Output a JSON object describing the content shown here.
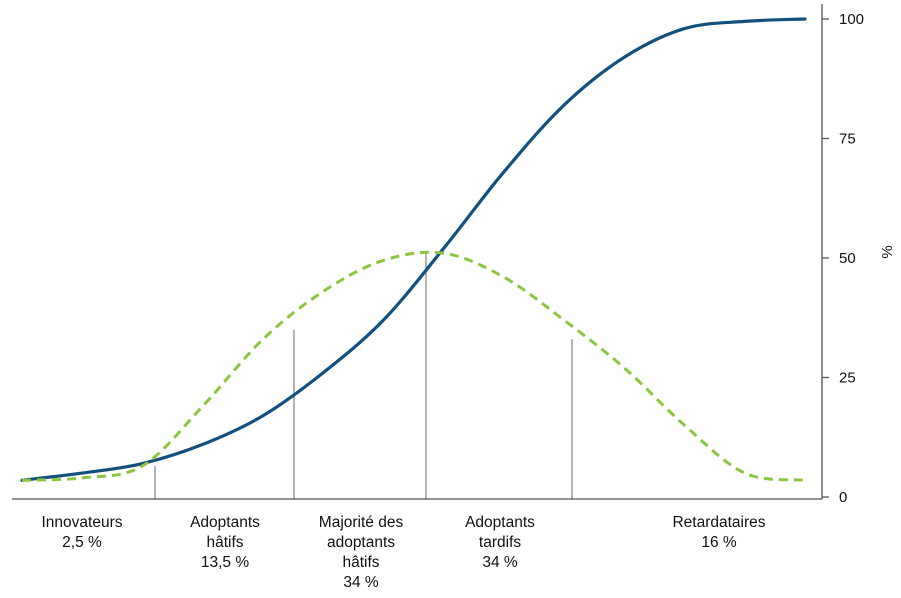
{
  "chart_data": {
    "type": "line",
    "title": "",
    "xlabel": "",
    "ylabel": "%",
    "ylim": [
      0,
      100
    ],
    "yticks": [
      "0",
      "25",
      "50",
      "75",
      "100"
    ],
    "grid": false,
    "legend": "none",
    "categories": [
      {
        "lines": [
          "Innovateurs",
          "2,5 %"
        ]
      },
      {
        "lines": [
          "Adoptants",
          "hâtifs",
          "13,5 %"
        ]
      },
      {
        "lines": [
          "Majorité des",
          "adoptants",
          "hâtifs",
          "34 %"
        ]
      },
      {
        "lines": [
          "Adoptants",
          "tardifs",
          "34 %"
        ]
      },
      {
        "lines": [
          "Retardataires",
          "16 %"
        ]
      }
    ],
    "dividers_y": [
      6.5,
      35,
      51,
      33
    ],
    "series": [
      {
        "style": "solid",
        "color": "#12507e",
        "x": [
          0,
          60,
          120,
          180,
          240,
          300,
          360,
          420,
          480,
          540,
          600,
          660,
          720,
          780
        ],
        "y": [
          3.5,
          5,
          7,
          11,
          17,
          26,
          37,
          52,
          68,
          82,
          92,
          98,
          99.5,
          100
        ]
      },
      {
        "style": "dashed",
        "color": "#8cc63f",
        "x": [
          0,
          60,
          120,
          180,
          240,
          300,
          360,
          420,
          480,
          540,
          600,
          660,
          720,
          780
        ],
        "y": [
          3.5,
          4,
          6.5,
          19,
          33,
          43,
          49.5,
          51,
          46,
          37,
          27,
          15,
          5,
          3.5
        ]
      }
    ]
  }
}
